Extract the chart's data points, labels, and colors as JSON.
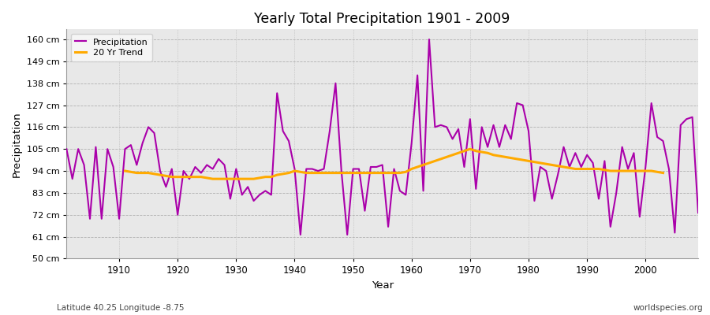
{
  "title": "Yearly Total Precipitation 1901 - 2009",
  "xlabel": "Year",
  "ylabel": "Precipitation",
  "subtitle_left": "Latitude 40.25 Longitude -8.75",
  "subtitle_right": "worldspecies.org",
  "bg_color": "#ffffff",
  "plot_bg_color": "#e8e8e8",
  "precip_color": "#aa00aa",
  "trend_color": "#ffaa00",
  "ylim": [
    50,
    165
  ],
  "xlim": [
    1901,
    2009
  ],
  "yticks": [
    50,
    61,
    72,
    83,
    94,
    105,
    116,
    127,
    138,
    149,
    160
  ],
  "ytick_labels": [
    "50 cm",
    "61 cm",
    "72 cm",
    "83 cm",
    "94 cm",
    "105 cm",
    "116 cm",
    "127 cm",
    "138 cm",
    "149 cm",
    "160 cm"
  ],
  "xticks": [
    1910,
    1920,
    1930,
    1940,
    1950,
    1960,
    1970,
    1980,
    1990,
    2000
  ],
  "years": [
    1901,
    1902,
    1903,
    1904,
    1905,
    1906,
    1907,
    1908,
    1909,
    1910,
    1911,
    1912,
    1913,
    1914,
    1915,
    1916,
    1917,
    1918,
    1919,
    1920,
    1921,
    1922,
    1923,
    1924,
    1925,
    1926,
    1927,
    1928,
    1929,
    1930,
    1931,
    1932,
    1933,
    1934,
    1935,
    1936,
    1937,
    1938,
    1939,
    1940,
    1941,
    1942,
    1943,
    1944,
    1945,
    1946,
    1947,
    1948,
    1949,
    1950,
    1951,
    1952,
    1953,
    1954,
    1955,
    1956,
    1957,
    1958,
    1959,
    1960,
    1961,
    1962,
    1963,
    1964,
    1965,
    1966,
    1967,
    1968,
    1969,
    1970,
    1971,
    1972,
    1973,
    1974,
    1975,
    1976,
    1977,
    1978,
    1979,
    1980,
    1981,
    1982,
    1983,
    1984,
    1985,
    1986,
    1987,
    1988,
    1989,
    1990,
    1991,
    1992,
    1993,
    1994,
    1995,
    1996,
    1997,
    1998,
    1999,
    2000,
    2001,
    2002,
    2003,
    2004,
    2005,
    2006,
    2007,
    2008,
    2009
  ],
  "precipitation": [
    105,
    90,
    105,
    97,
    70,
    106,
    70,
    105,
    96,
    70,
    105,
    107,
    97,
    108,
    116,
    113,
    94,
    86,
    95,
    72,
    94,
    90,
    96,
    93,
    97,
    95,
    100,
    97,
    80,
    95,
    82,
    86,
    79,
    82,
    84,
    82,
    133,
    114,
    109,
    95,
    62,
    95,
    95,
    94,
    95,
    114,
    138,
    94,
    62,
    95,
    95,
    74,
    96,
    96,
    97,
    66,
    95,
    84,
    82,
    108,
    142,
    84,
    160,
    116,
    117,
    116,
    110,
    115,
    96,
    120,
    85,
    116,
    106,
    117,
    106,
    117,
    110,
    128,
    127,
    114,
    79,
    96,
    94,
    80,
    92,
    106,
    96,
    103,
    96,
    102,
    98,
    80,
    99,
    66,
    83,
    106,
    95,
    103,
    71,
    96,
    128,
    111,
    109,
    95,
    63,
    117,
    120,
    121,
    73
  ],
  "trend": [
    null,
    null,
    null,
    null,
    null,
    null,
    null,
    null,
    null,
    null,
    94,
    93.5,
    93,
    93,
    93,
    92.5,
    92,
    91.5,
    91,
    91,
    91,
    91,
    91,
    91,
    90.5,
    90,
    90,
    90,
    90,
    90,
    90,
    90,
    90,
    90.5,
    91,
    91,
    92,
    92.5,
    93,
    94,
    93.5,
    93,
    93,
    93,
    93,
    93,
    93,
    93,
    93,
    93,
    93,
    93,
    93,
    93,
    93,
    93,
    93,
    93,
    93.5,
    95,
    96,
    97,
    98,
    99,
    100,
    101,
    102,
    103,
    104,
    105,
    104,
    103.5,
    103,
    102,
    101.5,
    101,
    100.5,
    100,
    99.5,
    99,
    98.5,
    98,
    97.5,
    97,
    96.5,
    96,
    95.5,
    95,
    95,
    95,
    95,
    95,
    94.5,
    94,
    94,
    94,
    94,
    94,
    94,
    94,
    94,
    93.5,
    93,
    null,
    null,
    null,
    null,
    null,
    null
  ]
}
